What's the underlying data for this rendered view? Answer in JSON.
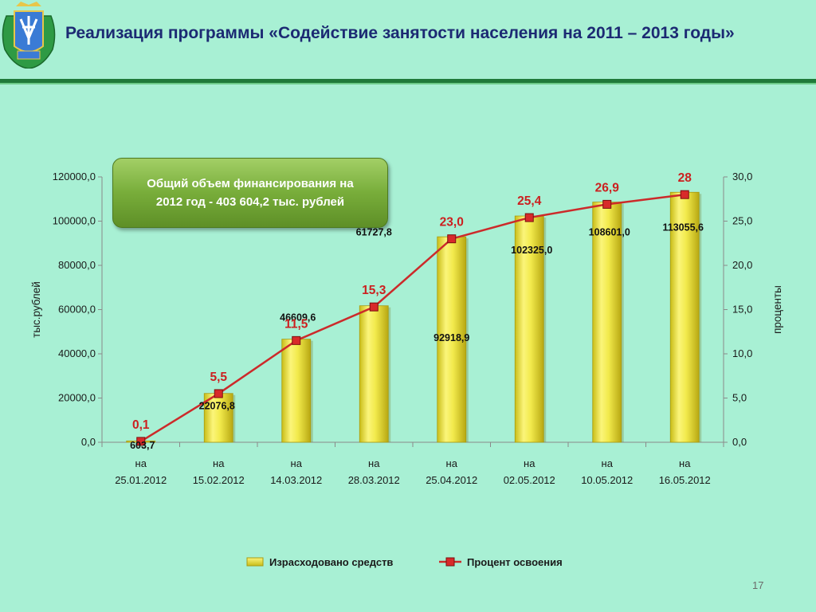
{
  "header": {
    "title": "Реализация программы «Содействие занятости населения на 2011 – 2013 годы»"
  },
  "callout": {
    "line1": "Общий объем финансирования на",
    "line2": "2012 год - 403 604,2 тыс. рублей"
  },
  "page_number": "17",
  "icons": {
    "emblem": "coat-of-arms-emblem"
  },
  "colors": {
    "background": "#a8f0d4",
    "title": "#1c2a73",
    "rule": "#1f7a3a",
    "bar": "#f2ea4c",
    "line": "#cc2a2a",
    "marker": "#d82a2a",
    "callout": "#78ad3a"
  },
  "chart_data": {
    "type": "bar",
    "categories": [
      [
        "на",
        "25.01.2012"
      ],
      [
        "на",
        "15.02.2012"
      ],
      [
        "на",
        "14.03.2012"
      ],
      [
        "на",
        "28.03.2012"
      ],
      [
        "на",
        "25.04.2012"
      ],
      [
        "на",
        "02.05.2012"
      ],
      [
        "на",
        "10.05.2012"
      ],
      [
        "на",
        "16.05.2012"
      ]
    ],
    "series": [
      {
        "name": "Израсходовано средств",
        "type": "bar",
        "axis": "left",
        "values": [
          603.7,
          22076.8,
          46609.6,
          61727.8,
          92918.9,
          102325.0,
          108601.0,
          113055.6
        ],
        "labels": [
          "603,7",
          "22076,8",
          "46609,6",
          "61727,8",
          "92918,9",
          "102325,0",
          "108601,0",
          "113055,6"
        ]
      },
      {
        "name": "Процент освоения",
        "type": "line",
        "axis": "right",
        "values": [
          0.1,
          5.5,
          11.5,
          15.3,
          23.0,
          25.4,
          26.9,
          28
        ],
        "labels": [
          "0,1",
          "5,5",
          "11,5",
          "15,3",
          "23,0",
          "25,4",
          "26,9",
          "28"
        ]
      }
    ],
    "ylabel": "тыс.рублей",
    "y2label": "проценты",
    "ylim": [
      0,
      120000
    ],
    "y2lim": [
      0,
      30
    ],
    "yticks": [
      "0,0",
      "20000,0",
      "40000,0",
      "60000,0",
      "80000,0",
      "100000,0",
      "120000,0"
    ],
    "y2ticks": [
      "0,0",
      "5,0",
      "10,0",
      "15,0",
      "20,0",
      "25,0",
      "30,0"
    ],
    "grid": false,
    "legend": "bottom"
  }
}
